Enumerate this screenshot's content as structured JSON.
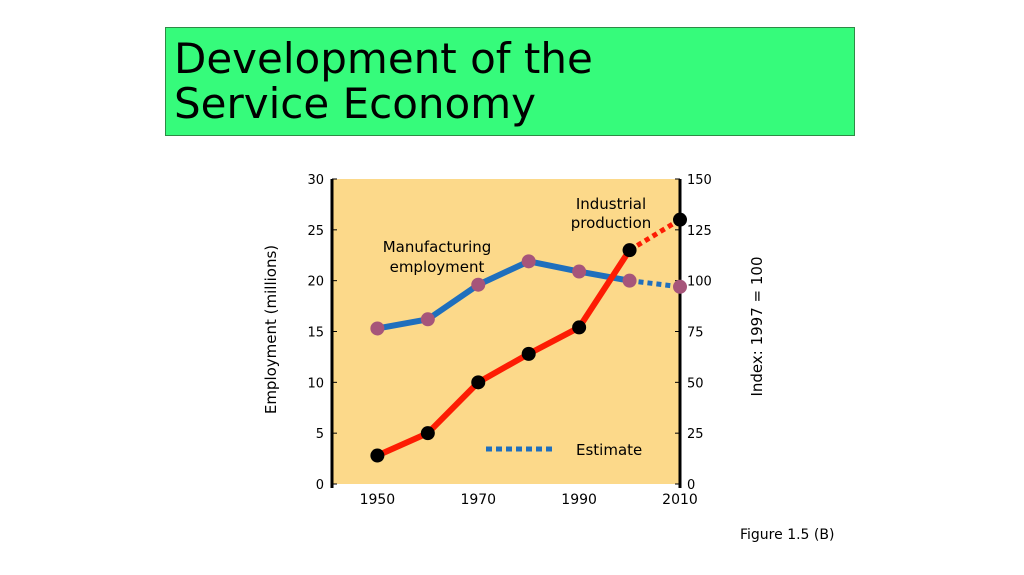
{
  "slide": {
    "title_line1": "Development of the",
    "title_line2": "Service Economy",
    "caption": "Figure 1.5 (B)"
  },
  "chart_data": {
    "type": "line",
    "ylabel": "Employment (millions)",
    "y2label": "Index: 1997 = 100",
    "ylim": [
      0,
      30
    ],
    "y2lim": [
      0,
      150
    ],
    "xlim": [
      1941,
      2010
    ],
    "xticks": [
      "1950",
      "1970",
      "1990",
      "2010"
    ],
    "yticks": [
      "0",
      "5",
      "10",
      "15",
      "20",
      "25",
      "30"
    ],
    "y2ticks": [
      "0",
      "25",
      "50",
      "75",
      "100",
      "125",
      "150"
    ],
    "grid": false,
    "plot_background": "#fcd98a",
    "series": [
      {
        "name": "Manufacturing employment",
        "axis": "left",
        "color": "#1f6fbd",
        "marker_color": "#a6557a",
        "x": [
          1950,
          1960,
          1970,
          1980,
          1990,
          2000,
          2010
        ],
        "values": [
          15.3,
          16.2,
          19.6,
          21.9,
          20.9,
          20.0,
          19.4
        ],
        "estimate_from_index": 5
      },
      {
        "name": "Industrial production",
        "axis": "right",
        "color": "#fd1c03",
        "marker_color": "#000000",
        "x": [
          1950,
          1960,
          1970,
          1980,
          1990,
          2000,
          2010
        ],
        "values": [
          14,
          25,
          50,
          64,
          77,
          115,
          130
        ],
        "estimate_from_index": 5
      }
    ],
    "annotations": {
      "manufacturing_label": [
        "Manufacturing",
        "employment"
      ],
      "industrial_label": [
        "Industrial",
        "production"
      ],
      "estimate_label": "Estimate"
    }
  }
}
